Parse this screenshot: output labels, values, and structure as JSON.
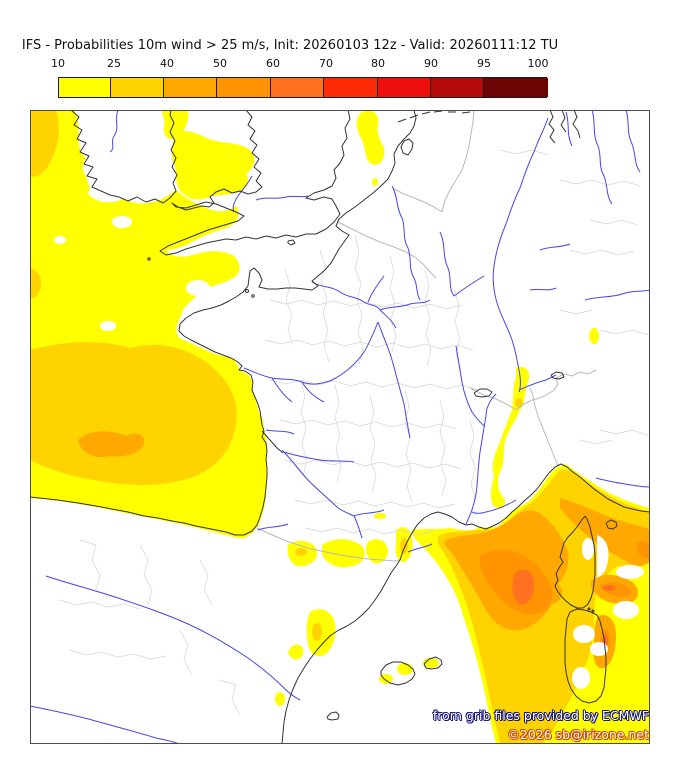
{
  "title": "IFS - Probabilities 10m wind > 25 m/s, Init: 20260103 12z - Valid: 20260111:12 TU",
  "colorbar": {
    "tick_values": [
      "10",
      "25",
      "40",
      "50",
      "60",
      "70",
      "80",
      "90",
      "95",
      "100"
    ],
    "cell_colors": [
      "#ffff00",
      "#ffd300",
      "#ffa900",
      "#ff9400",
      "#ff7020",
      "#ff2a06",
      "#ed0f0c",
      "#b40a0a",
      "#6e0505"
    ],
    "border_color": "#1a1a1a",
    "unit": "%"
  },
  "map_field_colors": {
    "p10_25": "#ffff00",
    "p25_40": "#ffd300",
    "p40_50": "#ffa900",
    "p50_60": "#ff9400",
    "p60_70": "#ff7020",
    "sea_land": "#ffffff",
    "coastline": "#333333",
    "rivers": "#4646e8",
    "admin": "#d4d4d4",
    "borders": "#b9b9b9"
  },
  "credits": {
    "line1": "from grib files provided by ECMWF",
    "line2": "©2026 sb@irizone.net",
    "text_color": "#ffffff",
    "line1_outline": "#14147a",
    "line2_outline": "#cc4a00"
  }
}
